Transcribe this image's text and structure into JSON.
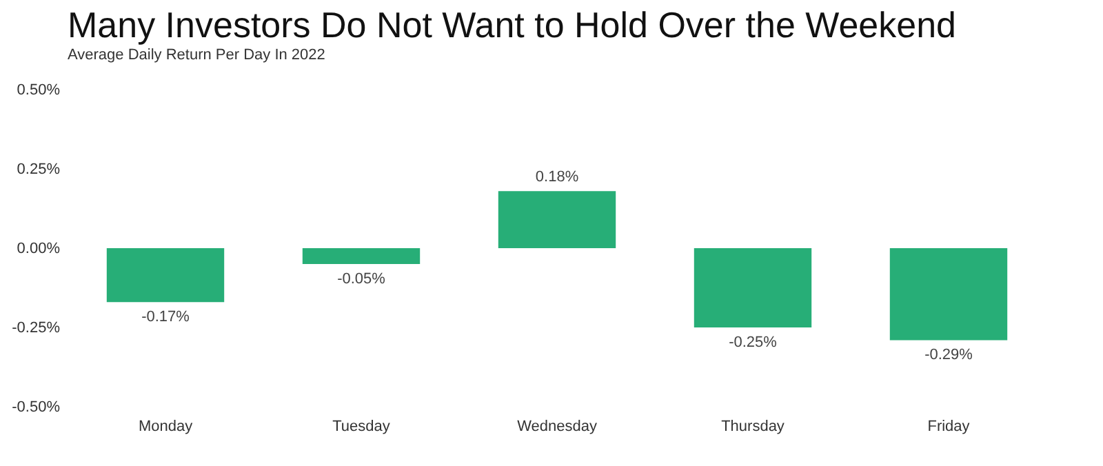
{
  "chart_data": {
    "type": "bar",
    "title": "Many Investors Do Not Want to Hold Over the Weekend",
    "subtitle": "Average Daily Return Per Day In 2022",
    "categories": [
      "Monday",
      "Tuesday",
      "Wednesday",
      "Thursday",
      "Friday"
    ],
    "values": [
      -0.17,
      -0.05,
      0.18,
      -0.25,
      -0.29
    ],
    "color": "#27ae77",
    "value_labels": [
      "-0.17%",
      "-0.05%",
      "0.18%",
      "-0.25%",
      "-0.29%"
    ],
    "ylim": [
      -0.5,
      0.5
    ],
    "yticks": [
      {
        "value": -0.5,
        "label": "-0.50%"
      },
      {
        "value": -0.25,
        "label": "-0.25%"
      },
      {
        "value": 0,
        "label": "0.00%"
      },
      {
        "value": 0.25,
        "label": "0.25%"
      },
      {
        "value": 0.5,
        "label": "0.50%"
      }
    ],
    "grid": false
  }
}
